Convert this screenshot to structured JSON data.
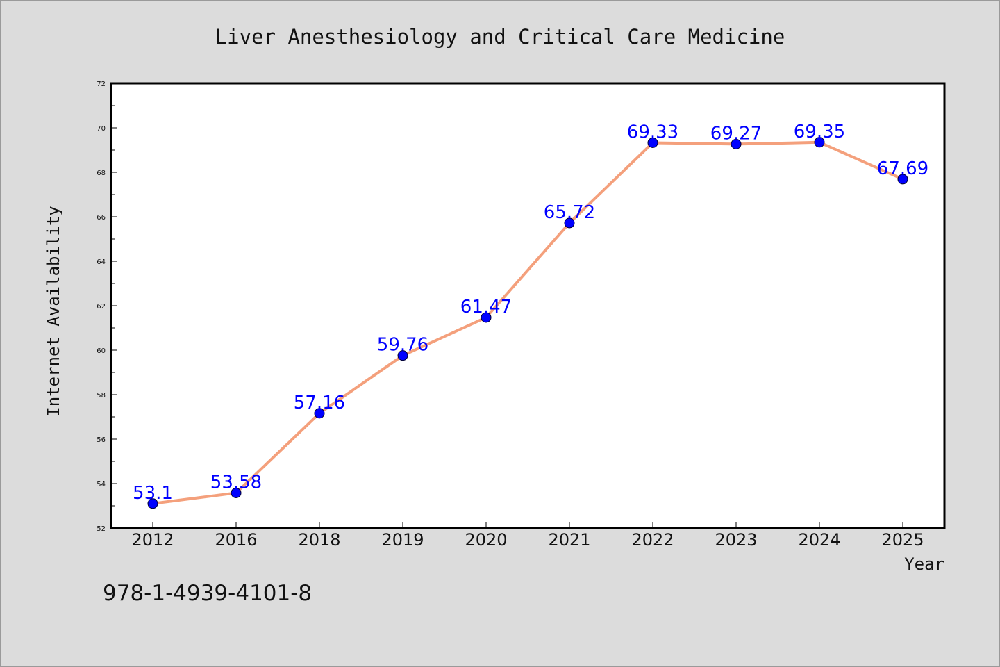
{
  "chart_data": {
    "type": "line",
    "title": "Liver Anesthesiology and Critical Care Medicine",
    "xlabel": "Year",
    "ylabel": "Internet Availability",
    "categories": [
      "2012",
      "2016",
      "2018",
      "2019",
      "2020",
      "2021",
      "2022",
      "2023",
      "2024",
      "2025"
    ],
    "values": [
      53.1,
      53.58,
      57.16,
      59.76,
      61.47,
      65.72,
      69.33,
      69.27,
      69.35,
      67.69
    ],
    "data_labels": [
      "53.1",
      "53.58",
      "57.16",
      "59.76",
      "61.47",
      "65.72",
      "69.33",
      "69.27",
      "69.35",
      "67.69"
    ],
    "ylim": [
      52,
      72
    ],
    "yticks": [
      52,
      54,
      56,
      58,
      60,
      62,
      64,
      66,
      68,
      70,
      72
    ],
    "grid": false,
    "colors": {
      "line": "#f4a07c",
      "marker": "#0000ff",
      "data_label": "#0000ff",
      "plot_background": "#ffffff",
      "page_background": "#dcdcdc"
    }
  },
  "annotation": {
    "isbn": "978-1-4939-4101-8"
  }
}
